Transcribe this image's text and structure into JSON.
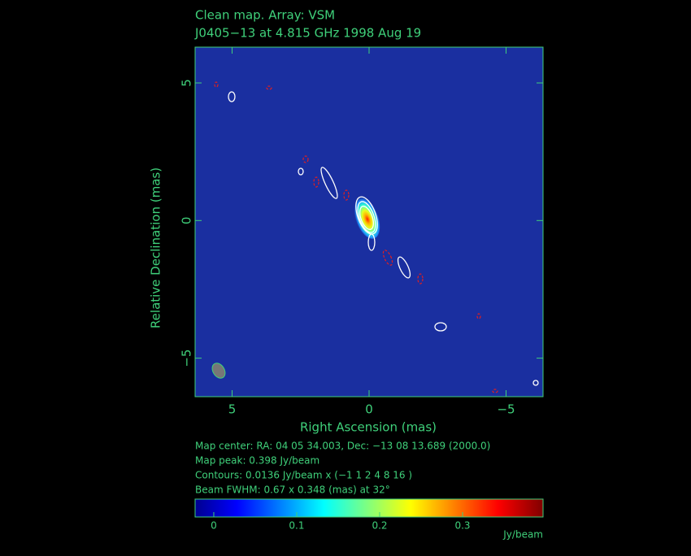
{
  "chart_data": {
    "type": "contour",
    "title": "Clean map.  Array: VSM",
    "subtitle": "J0405−13 at 4.815 GHz 1998 Aug 19",
    "x_label": "Right Ascension  (mas)",
    "y_label": "Relative Declination  (mas)",
    "xlim": [
      6.35,
      -6.35
    ],
    "ylim": [
      -6.4,
      6.3
    ],
    "xticks": [
      5,
      0,
      {
        "value": -5,
        "label": "−5"
      }
    ],
    "yticks": [
      5,
      0,
      {
        "value": -5,
        "label": "−5"
      }
    ],
    "info": [
      "Map center:  RA: 04 05 34.003,  Dec: −13 08 13.689 (2000.0)",
      "Map peak: 0.398 Jy/beam",
      "Contours: 0.0136 Jy/beam x (−1 1 2 4 8 16 )",
      "Beam FWHM: 0.67 x 0.348 (mas) at 32°"
    ],
    "colorbar": {
      "lim": [
        -0.0225,
        0.397
      ],
      "ticks": [
        0,
        0.1,
        0.2,
        0.3
      ],
      "label": "Jy/beam"
    }
  }
}
